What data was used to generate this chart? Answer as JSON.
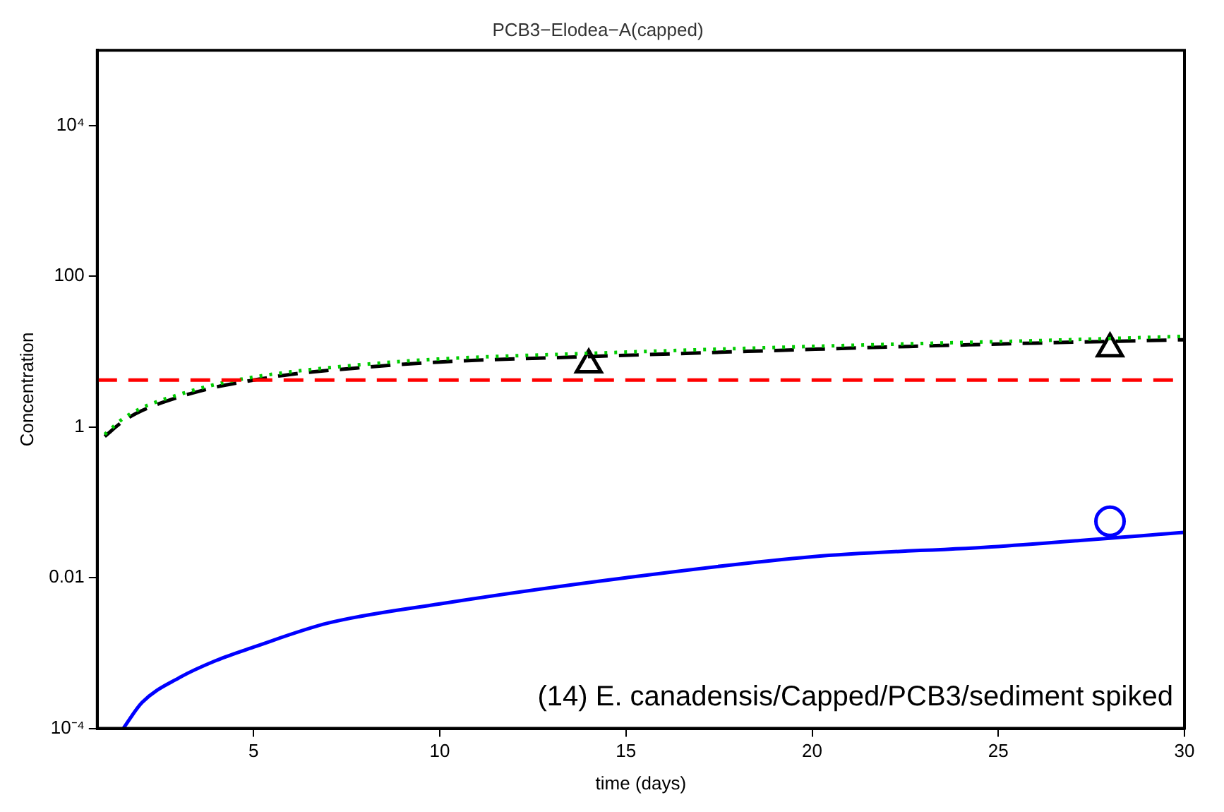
{
  "chart_data": {
    "type": "line",
    "title": "PCB3−Elodea−A(capped)",
    "xlabel": "time (days)",
    "ylabel": "Concentration",
    "log": "y",
    "grid": false,
    "legend": false,
    "xlim": [
      0.8,
      30
    ],
    "xticks": [
      5,
      10,
      15,
      20,
      25,
      30
    ],
    "ylim": [
      0.0001,
      100000
    ],
    "yticks": [
      {
        "value": 0.0001,
        "label": "10⁻⁴"
      },
      0.01,
      1,
      100,
      {
        "value": 10000,
        "label": "10⁴"
      }
    ],
    "series": [
      {
        "color": "#00cc00",
        "line_style": "dotted",
        "marker": "none",
        "x": [
          1,
          1.5,
          2,
          3,
          4,
          5,
          6,
          8,
          10,
          14,
          18,
          22,
          26,
          30
        ],
        "values": [
          0.8,
          1.3,
          1.8,
          2.7,
          3.7,
          4.6,
          5.4,
          6.8,
          8,
          9.5,
          11,
          12.5,
          14,
          16
        ]
      },
      {
        "color": "#000000",
        "line_style": "dashed",
        "marker": "none",
        "x": [
          1,
          1.5,
          2,
          3,
          4,
          5,
          6,
          8,
          10,
          14,
          18,
          22,
          26,
          30
        ],
        "values": [
          0.75,
          1.2,
          1.65,
          2.5,
          3.4,
          4.2,
          5,
          6.2,
          7.3,
          8.6,
          10,
          11.5,
          13,
          14.4
        ]
      },
      {
        "color": "#0000ff",
        "line_style": "solid",
        "marker": "none",
        "x": [
          1.5,
          2,
          3,
          4,
          5,
          7,
          10,
          15,
          20,
          25,
          30
        ],
        "values": [
          0.0001,
          0.00022,
          0.00047,
          0.0008,
          0.0012,
          0.0025,
          0.0045,
          0.01,
          0.019,
          0.026,
          0.04
        ]
      },
      {
        "type": "scatter",
        "color": "#000000",
        "marker": "triangle",
        "x": [
          14,
          28
        ],
        "values": [
          6.7,
          11
        ]
      },
      {
        "type": "scatter",
        "color": "#0000ff",
        "marker": "circle",
        "x": [
          28
        ],
        "values": [
          0.056
        ]
      }
    ],
    "ref_lines": [
      {
        "axis": "y",
        "value": 4.2,
        "color": "#ff0000",
        "line_style": "dashed"
      }
    ],
    "annotations": [
      "(14) E. canadensis/Capped/PCB3/sediment spiked"
    ]
  }
}
